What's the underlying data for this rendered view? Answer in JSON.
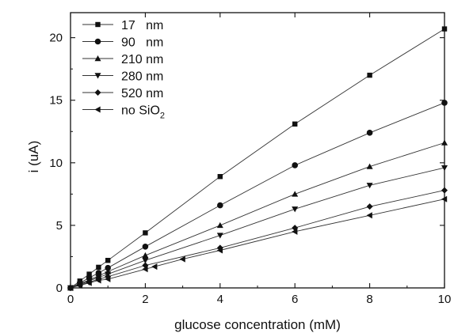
{
  "chart_data": {
    "type": "line",
    "title": "",
    "xlabel": "glucose concentration (mM)",
    "ylabel": "i (uA)",
    "xlim": [
      0,
      10
    ],
    "ylim": [
      0,
      22
    ],
    "xticks": [
      "0",
      "2",
      "4",
      "6",
      "8",
      "10"
    ],
    "yticks": [
      "0",
      "5",
      "10",
      "15",
      "20"
    ],
    "grid": false,
    "legend_position": "top-left",
    "series": [
      {
        "name": "17   nm",
        "marker": "square",
        "x": [
          0,
          0.25,
          0.5,
          0.75,
          1,
          2,
          4,
          6,
          8,
          10
        ],
        "y": [
          0,
          0.55,
          1.1,
          1.65,
          2.2,
          4.4,
          8.9,
          13.1,
          17.0,
          20.7
        ]
      },
      {
        "name": "90   nm",
        "marker": "circle",
        "x": [
          0,
          0.25,
          0.5,
          0.75,
          1,
          2,
          4,
          6,
          8,
          10
        ],
        "y": [
          0,
          0.4,
          0.8,
          1.2,
          1.6,
          3.3,
          6.6,
          9.8,
          12.4,
          14.8
        ]
      },
      {
        "name": "210 nm",
        "marker": "triangle-up",
        "x": [
          0,
          0.25,
          0.5,
          0.75,
          1,
          2,
          4,
          6,
          8,
          10
        ],
        "y": [
          0,
          0.32,
          0.64,
          0.96,
          1.3,
          2.6,
          5.0,
          7.5,
          9.7,
          11.6
        ]
      },
      {
        "name": "280 nm",
        "marker": "triangle-down",
        "x": [
          0,
          0.25,
          0.5,
          0.75,
          1,
          2,
          4,
          6,
          8,
          10
        ],
        "y": [
          0,
          0.28,
          0.56,
          0.84,
          1.1,
          2.2,
          4.2,
          6.3,
          8.2,
          9.6
        ]
      },
      {
        "name": "520 nm",
        "marker": "diamond",
        "x": [
          0,
          0.25,
          0.5,
          0.75,
          1,
          2,
          4,
          6,
          8,
          10
        ],
        "y": [
          0,
          0.23,
          0.46,
          0.69,
          0.9,
          1.8,
          3.2,
          4.8,
          6.5,
          7.8
        ]
      },
      {
        "name": "no SiO",
        "name_subscript": "2",
        "marker": "triangle-left",
        "x": [
          0,
          0.25,
          0.5,
          0.75,
          1,
          2,
          2.25,
          3,
          4,
          6,
          8,
          10
        ],
        "y": [
          0,
          0.2,
          0.4,
          0.6,
          0.7,
          1.5,
          1.7,
          2.3,
          3.0,
          4.5,
          5.8,
          7.1
        ]
      }
    ]
  }
}
